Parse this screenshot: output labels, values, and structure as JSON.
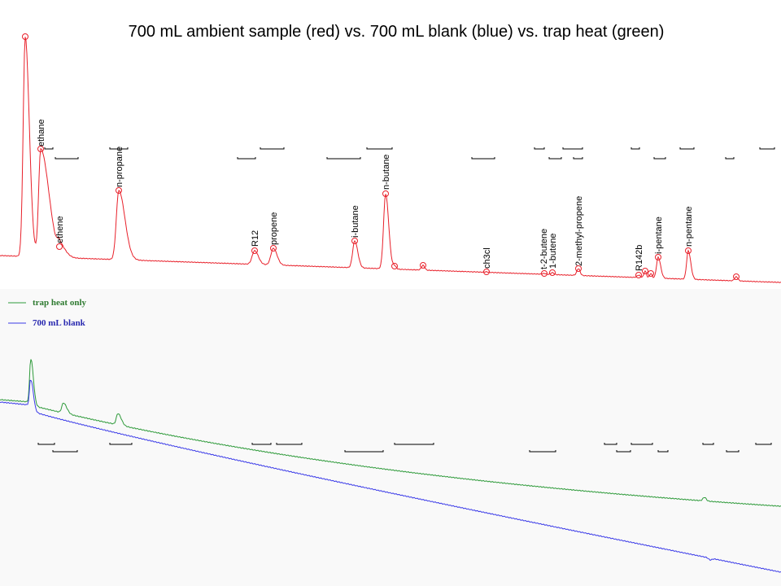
{
  "title": "700 mL ambient sample (red) vs. 700 mL blank (blue) vs. trap heat (green)",
  "peaks": [
    "ethane",
    "ethene",
    "n-propane",
    "R12",
    "propene",
    "i-butane",
    "n-butane",
    "ch3cl",
    "t-2-butene",
    "1-butene",
    "2-methyl-propene",
    "R142b",
    "i-pentane",
    "n-pentane"
  ],
  "legend": [
    "trap heat only",
    "700 mL blank"
  ]
}
